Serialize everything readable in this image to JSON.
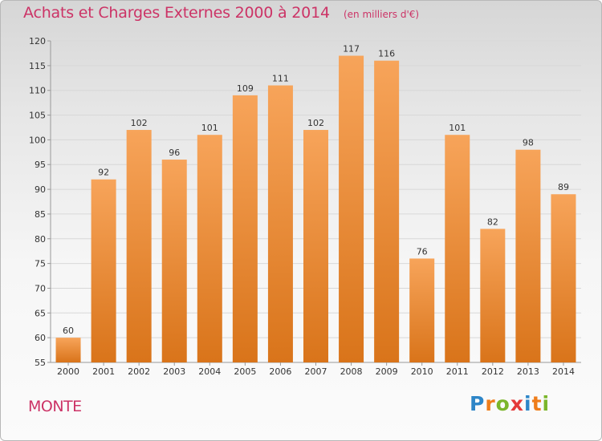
{
  "header": {
    "title": "Achats et Charges Externes 2000 à 2014",
    "subtitle": "(en milliers d'€)"
  },
  "footer": {
    "commune": "MONTE",
    "brand_letters": [
      {
        "ch": "P",
        "color": "#2e86c8"
      },
      {
        "ch": "r",
        "color": "#ef7d1a"
      },
      {
        "ch": "o",
        "color": "#7bb62b"
      },
      {
        "ch": "x",
        "color": "#e43a3a"
      },
      {
        "ch": "i",
        "color": "#2e86c8"
      },
      {
        "ch": "t",
        "color": "#ef7d1a"
      },
      {
        "ch": "i",
        "color": "#7bb62b"
      }
    ]
  },
  "colors": {
    "bar_top": "#f7a45a",
    "bar_bottom": "#d9741a",
    "grid": "#d8d8d8",
    "axis_text": "#333333"
  },
  "chart_data": {
    "type": "bar",
    "categories": [
      "2000",
      "2001",
      "2002",
      "2003",
      "2004",
      "2005",
      "2006",
      "2007",
      "2008",
      "2009",
      "2010",
      "2011",
      "2012",
      "2013",
      "2014"
    ],
    "values": [
      60,
      92,
      102,
      96,
      101,
      109,
      111,
      102,
      117,
      116,
      76,
      101,
      82,
      98,
      89
    ],
    "title": "Achats et Charges Externes 2000 à 2014",
    "xlabel": "",
    "ylabel": "",
    "ylim": [
      55,
      120
    ],
    "yticks": [
      55,
      60,
      65,
      70,
      75,
      80,
      85,
      90,
      95,
      100,
      105,
      110,
      115,
      120
    ],
    "grid": true,
    "data_labels": true
  }
}
